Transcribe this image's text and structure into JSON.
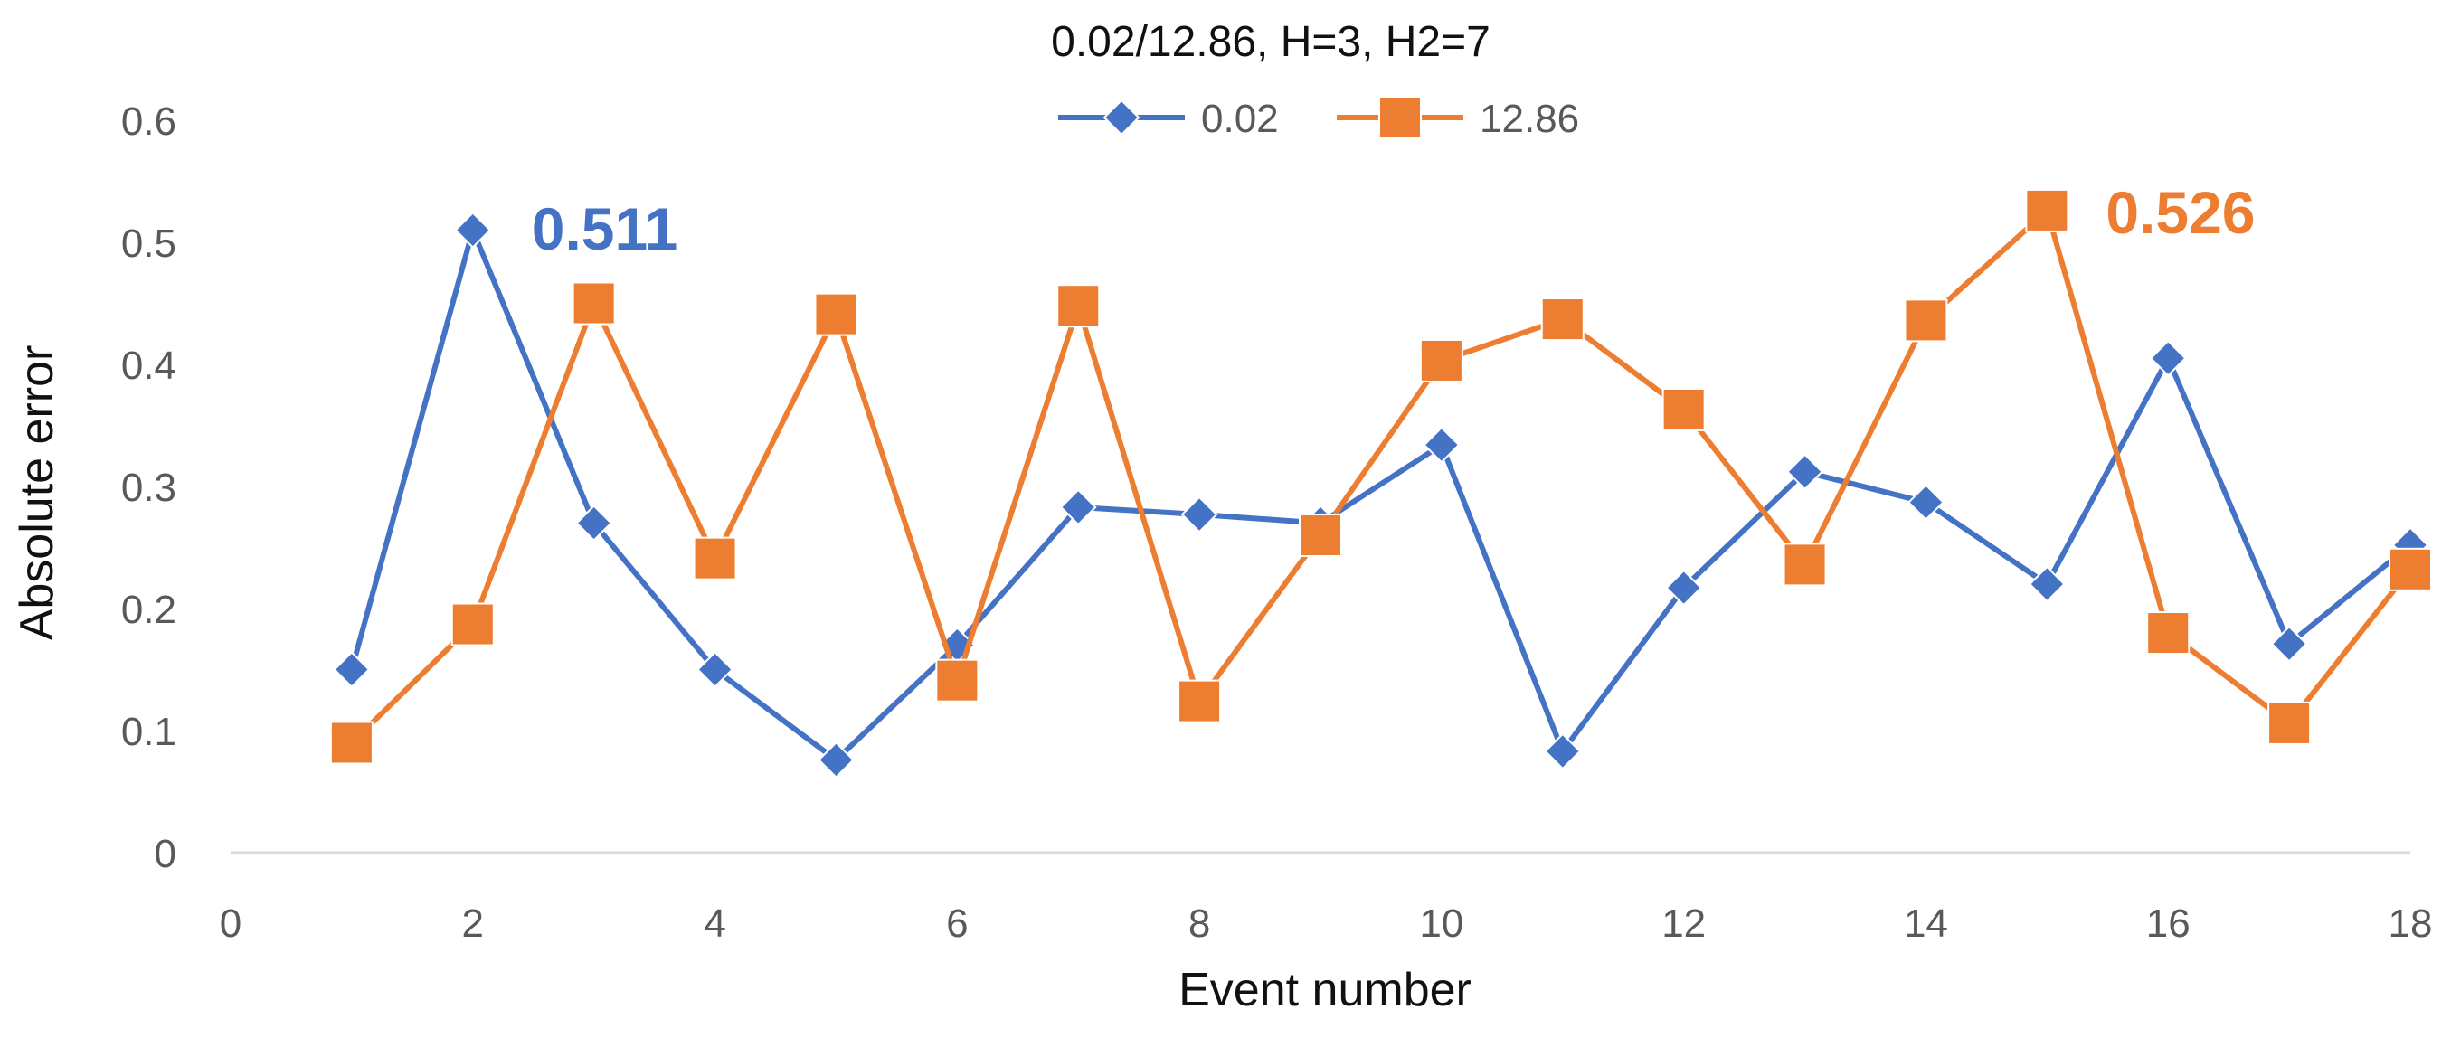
{
  "chart_data": {
    "type": "line",
    "title": "0.02/12.86, H=3, H2=7",
    "xlabel": "Event number",
    "ylabel": "Absolute error",
    "xlim": [
      0,
      18
    ],
    "ylim": [
      0,
      0.6
    ],
    "xticks": [
      "0",
      "2",
      "4",
      "6",
      "8",
      "10",
      "12",
      "14",
      "16",
      "18"
    ],
    "yticks": [
      "0",
      "0.1",
      "0.2",
      "0.3",
      "0.4",
      "0.5",
      "0.6"
    ],
    "grid": false,
    "legend_position": "top-center",
    "x": [
      1,
      2,
      3,
      4,
      5,
      6,
      7,
      8,
      9,
      10,
      11,
      12,
      13,
      14,
      15,
      16,
      17,
      18
    ],
    "series": [
      {
        "name": "0.02",
        "color": "#4472C4",
        "marker": "diamond",
        "values": [
          0.15,
          0.51,
          0.27,
          0.15,
          0.076,
          0.17,
          0.283,
          0.277,
          0.27,
          0.334,
          0.083,
          0.217,
          0.312,
          0.287,
          0.22,
          0.405,
          0.171,
          0.252
        ]
      },
      {
        "name": "12.86",
        "color": "#ED7D31",
        "marker": "square",
        "values": [
          0.09,
          0.187,
          0.45,
          0.241,
          0.441,
          0.141,
          0.448,
          0.124,
          0.26,
          0.403,
          0.437,
          0.363,
          0.236,
          0.436,
          0.526,
          0.18,
          0.106,
          0.232
        ]
      }
    ],
    "annotations": [
      {
        "text": "0.511",
        "color": "#4472C4"
      },
      {
        "text": "0.526",
        "color": "#ED7D31"
      }
    ]
  }
}
